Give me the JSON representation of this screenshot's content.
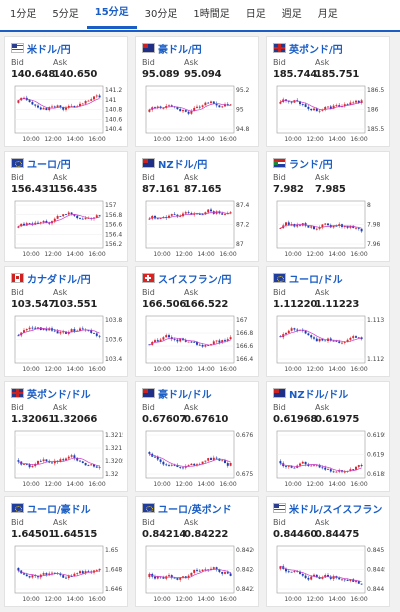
{
  "tabs": [
    "1分足",
    "5分足",
    "15分足",
    "30分足",
    "1時間足",
    "日足",
    "週足",
    "月足"
  ],
  "active_tab": 2,
  "labels": {
    "bid": "Bid",
    "ask": "Ask"
  },
  "cards": [
    {
      "pair": "米ドル/円",
      "bid": "140.648",
      "ask": "140.650",
      "yticks": [
        "141.2",
        "141",
        "140.8",
        "140.6",
        "140.4"
      ],
      "xticks": [
        "10:00",
        "12:00",
        "14:00",
        "16:00"
      ],
      "flag": "us"
    },
    {
      "pair": "豪ドル/円",
      "bid": "95.089",
      "ask": "95.094",
      "yticks": [
        "95.2",
        "95",
        "94.8"
      ],
      "xticks": [
        "10:00",
        "12:00",
        "14:00",
        "16:00"
      ],
      "flag": "au"
    },
    {
      "pair": "英ポンド/円",
      "bid": "185.744",
      "ask": "185.751",
      "yticks": [
        "186.5",
        "186",
        "185.5"
      ],
      "xticks": [
        "10:00",
        "12:00",
        "14:00",
        "16:00"
      ],
      "flag": "gb"
    },
    {
      "pair": "ユーロ/円",
      "bid": "156.431",
      "ask": "156.435",
      "yticks": [
        "157",
        "156.8",
        "156.6",
        "156.4",
        "156.2"
      ],
      "xticks": [
        "10:00",
        "12:00",
        "14:00",
        "16:00"
      ],
      "flag": "eu"
    },
    {
      "pair": "NZドル/円",
      "bid": "87.161",
      "ask": "87.165",
      "yticks": [
        "87.4",
        "87.2",
        "87"
      ],
      "xticks": [
        "10:00",
        "12:00",
        "14:00",
        "16:00"
      ],
      "flag": "nz"
    },
    {
      "pair": "ランド/円",
      "bid": "7.982",
      "ask": "7.985",
      "yticks": [
        "8",
        "7.98",
        "7.96"
      ],
      "xticks": [
        "10:00",
        "12:00",
        "14:00",
        "16:00"
      ],
      "flag": "za"
    },
    {
      "pair": "カナダドル/円",
      "bid": "103.547",
      "ask": "103.551",
      "yticks": [
        "103.8",
        "103.6",
        "103.4"
      ],
      "xticks": [
        "10:00",
        "12:00",
        "14:00",
        "16:00"
      ],
      "flag": "ca"
    },
    {
      "pair": "スイスフラン/円",
      "bid": "166.506",
      "ask": "166.522",
      "yticks": [
        "167",
        "166.8",
        "166.6",
        "166.4"
      ],
      "xticks": [
        "10:00",
        "12:00",
        "14:00",
        "16:00"
      ],
      "flag": "ch"
    },
    {
      "pair": "ユーロ/ドル",
      "bid": "1.11220",
      "ask": "1.11223",
      "yticks": [
        "1.113",
        "1.112"
      ],
      "xticks": [
        "10:00",
        "12:00",
        "14:00",
        "16:00"
      ],
      "flag": "eu"
    },
    {
      "pair": "英ポンド/ドル",
      "bid": "1.32061",
      "ask": "1.32066",
      "yticks": [
        "1.3215",
        "1.321",
        "1.3205",
        "1.32"
      ],
      "xticks": [
        "10:00",
        "12:00",
        "14:00",
        "16:00"
      ],
      "flag": "gb"
    },
    {
      "pair": "豪ドル/ドル",
      "bid": "0.67607",
      "ask": "0.67610",
      "yticks": [
        "0.676",
        "0.675"
      ],
      "xticks": [
        "10:00",
        "12:00",
        "14:00",
        "16:00"
      ],
      "flag": "au"
    },
    {
      "pair": "NZドル/ドル",
      "bid": "0.61968",
      "ask": "0.61975",
      "yticks": [
        "0.6195",
        "0.619",
        "0.6185"
      ],
      "xticks": [
        "10:00",
        "12:00",
        "14:00",
        "16:00"
      ],
      "flag": "nz"
    },
    {
      "pair": "ユーロ/豪ドル",
      "bid": "1.64501",
      "ask": "1.64515",
      "yticks": [
        "1.65",
        "1.648",
        "1.646"
      ],
      "xticks": [
        "10:00",
        "12:00",
        "14:00",
        "16:00"
      ],
      "flag": "eu"
    },
    {
      "pair": "ユーロ/英ポンド",
      "bid": "0.84214",
      "ask": "0.84222",
      "yticks": [
        "0.8426",
        "0.8424",
        "0.8422"
      ],
      "xticks": [
        "10:00",
        "12:00",
        "14:00",
        "16:00"
      ],
      "flag": "eu"
    },
    {
      "pair": "米ドル/スイスフラン",
      "bid": "0.84460",
      "ask": "0.84475",
      "yticks": [
        "0.845",
        "0.8445",
        "0.844"
      ],
      "xticks": [
        "10:00",
        "12:00",
        "14:00",
        "16:00"
      ],
      "flag": "us"
    }
  ],
  "colors": {
    "up": "#d9262c",
    "down": "#1a3fb5",
    "ma": "#c83cc8",
    "accent": "#1a5ec5"
  }
}
